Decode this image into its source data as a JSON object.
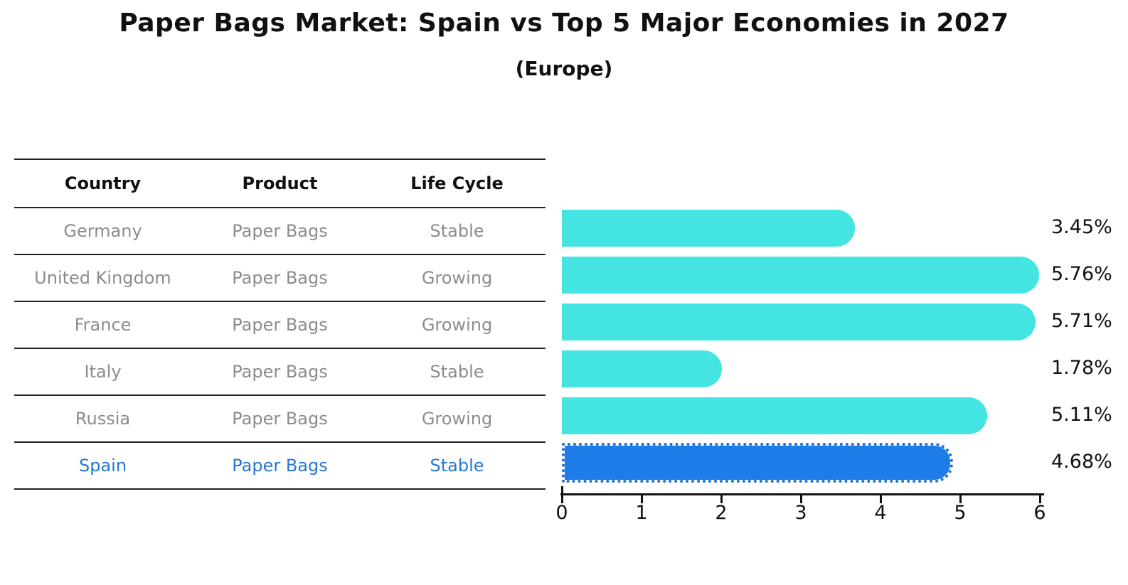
{
  "title": "Paper Bags Market: Spain vs Top 5 Major Economies in 2027",
  "subtitle": "(Europe)",
  "table": {
    "headers": [
      "Country",
      "Product",
      "Life Cycle"
    ],
    "rows": [
      {
        "country": "Germany",
        "product": "Paper Bags",
        "life_cycle": "Stable",
        "highlight": false
      },
      {
        "country": "United Kingdom",
        "product": "Paper Bags",
        "life_cycle": "Growing",
        "highlight": false
      },
      {
        "country": "France",
        "product": "Paper Bags",
        "life_cycle": "Growing",
        "highlight": false
      },
      {
        "country": "Italy",
        "product": "Paper Bags",
        "life_cycle": "Stable",
        "highlight": false
      },
      {
        "country": "Russia",
        "product": "Paper Bags",
        "life_cycle": "Growing",
        "highlight": false
      },
      {
        "country": "Spain",
        "product": "Paper Bags",
        "life_cycle": "Stable",
        "highlight": true
      }
    ]
  },
  "chart_data": {
    "type": "bar",
    "orientation": "horizontal",
    "title": "Paper Bags Market: Spain vs Top 5 Major Economies in 2027",
    "subtitle": "(Europe)",
    "categories": [
      "Germany",
      "United Kingdom",
      "France",
      "Italy",
      "Russia",
      "Spain"
    ],
    "values": [
      3.45,
      5.76,
      5.71,
      1.78,
      5.11,
      4.68
    ],
    "value_labels": [
      "3.45%",
      "5.76%",
      "5.71%",
      "1.78%",
      "5.11%",
      "4.68%"
    ],
    "xlabel": "",
    "ylabel": "",
    "xlim": [
      0,
      6
    ],
    "xticks": [
      "0",
      "1",
      "2",
      "3",
      "4",
      "5",
      "6"
    ],
    "grid": false,
    "legend": "none",
    "bar_color": "#43E4E1",
    "highlight_color": "#1E7CE8",
    "highlight_index": 5,
    "highlight_category": "Spain"
  },
  "colors": {
    "text": "#111111",
    "muted_text": "#8C8C8C",
    "highlight_text": "#2878D0",
    "table_line": "#222222"
  }
}
